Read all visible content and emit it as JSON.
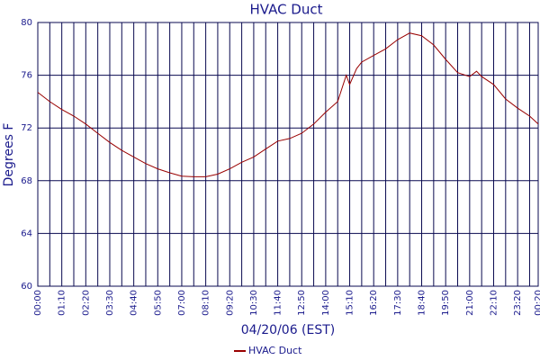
{
  "chart_data": {
    "type": "line",
    "title": "HVAC Duct",
    "y_label": "Degrees F",
    "x_label": "04/20/06 (EST)",
    "x": [
      0,
      35,
      70,
      105,
      140,
      175,
      210,
      245,
      280,
      315,
      350,
      385,
      420,
      455,
      490,
      525,
      560,
      595,
      630,
      665,
      700,
      735,
      770,
      805,
      840,
      875,
      900,
      910,
      930,
      945,
      980,
      1015,
      1050,
      1085,
      1120,
      1155,
      1190,
      1225,
      1260,
      1280,
      1295,
      1330,
      1365,
      1400,
      1435,
      1460
    ],
    "series": [
      {
        "name": "HVAC Duct",
        "color": "#990000",
        "values": [
          74.7,
          74.0,
          73.4,
          72.9,
          72.3,
          71.6,
          70.9,
          70.3,
          69.8,
          69.3,
          68.9,
          68.6,
          68.35,
          68.3,
          68.3,
          68.5,
          68.9,
          69.4,
          69.8,
          70.4,
          71.0,
          71.2,
          71.6,
          72.3,
          73.2,
          74.0,
          76.0,
          75.3,
          76.5,
          77.0,
          77.5,
          78.0,
          78.7,
          79.2,
          79.0,
          78.3,
          77.2,
          76.2,
          75.9,
          76.3,
          75.9,
          75.3,
          74.2,
          73.5,
          72.9,
          72.3
        ]
      }
    ],
    "xlim": [
      0,
      1460
    ],
    "xticks": [
      {
        "value": 0,
        "label": "00:00"
      },
      {
        "value": 70,
        "label": "01:10"
      },
      {
        "value": 140,
        "label": "02:20"
      },
      {
        "value": 210,
        "label": "03:30"
      },
      {
        "value": 280,
        "label": "04:40"
      },
      {
        "value": 350,
        "label": "05:50"
      },
      {
        "value": 420,
        "label": "07:00"
      },
      {
        "value": 490,
        "label": "08:10"
      },
      {
        "value": 560,
        "label": "09:20"
      },
      {
        "value": 630,
        "label": "10:30"
      },
      {
        "value": 700,
        "label": "11:40"
      },
      {
        "value": 770,
        "label": "12:50"
      },
      {
        "value": 840,
        "label": "14:00"
      },
      {
        "value": 910,
        "label": "15:10"
      },
      {
        "value": 980,
        "label": "16:20"
      },
      {
        "value": 1050,
        "label": "17:30"
      },
      {
        "value": 1120,
        "label": "18:40"
      },
      {
        "value": 1190,
        "label": "19:50"
      },
      {
        "value": 1260,
        "label": "21:00"
      },
      {
        "value": 1330,
        "label": "22:10"
      },
      {
        "value": 1400,
        "label": "23:20"
      },
      {
        "value": 1460,
        "label": "00:20"
      }
    ],
    "xminor": [
      35,
      105,
      175,
      245,
      315,
      385,
      455,
      525,
      595,
      665,
      735,
      805,
      875,
      945,
      1015,
      1085,
      1155,
      1225,
      1295,
      1365,
      1435
    ],
    "ylim": [
      60,
      80
    ],
    "yticks": [
      60,
      64,
      68,
      72,
      76,
      80
    ],
    "grid": true,
    "legend": "bottom"
  }
}
